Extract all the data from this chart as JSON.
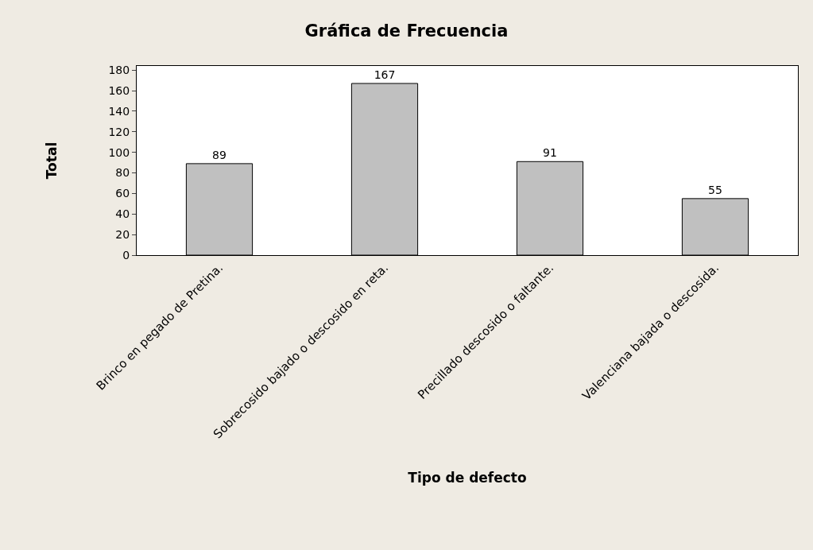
{
  "chart_data": {
    "type": "bar",
    "title": "Gráfica de Frecuencia",
    "xlabel": "Tipo de defecto",
    "ylabel": "Total",
    "categories": [
      "Brinco en pegado de Pretina.",
      "Sobrecosido bajado o descosido en reta.",
      "Precillado descosido o faltante.",
      "Valenciana bajada o descosida."
    ],
    "values": [
      89,
      167,
      91,
      55
    ],
    "color": "#c0c0c0",
    "ylim": [
      0,
      184
    ],
    "yticks": [
      0,
      20,
      40,
      60,
      80,
      100,
      120,
      140,
      160,
      180
    ],
    "grid": false,
    "data_labels": true
  }
}
